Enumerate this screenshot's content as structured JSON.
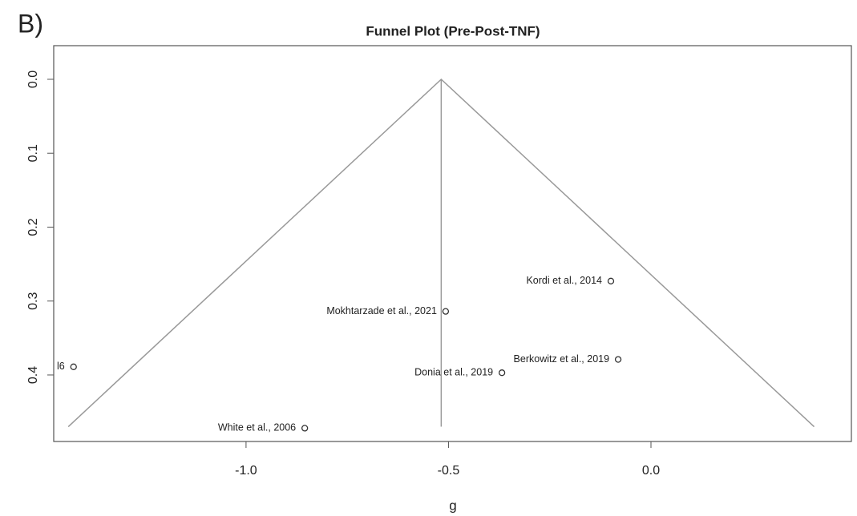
{
  "chart_data": {
    "type": "scatter",
    "panel_label": "B)",
    "title": "Funnel Plot (Pre-Post-TNF)",
    "x_label": "g",
    "xlim": [
      -1.475,
      0.495
    ],
    "ylim": [
      0.49,
      -0.0455
    ],
    "xticks": [
      {
        "value": -1.0,
        "label": "-1.0"
      },
      -0.5,
      {
        "value": 0,
        "label": "0.0"
      }
    ],
    "yticks": [
      {
        "value": 0,
        "label": "0.0"
      },
      0.1,
      0.2,
      0.3,
      0.4
    ],
    "funnel_lines": [
      {
        "x": [
          -1.439,
          -0.518,
          0.403
        ],
        "y": [
          0.47,
          0,
          0.47
        ]
      },
      {
        "x": [
          -0.518,
          -0.518
        ],
        "y": [
          0,
          0.47
        ]
      }
    ],
    "series": [
      {
        "x": [
          -0.099,
          -0.507,
          -0.081,
          -0.368,
          -0.855,
          -1.426
        ],
        "values": [
          0.273,
          0.314,
          0.379,
          0.397,
          0.472,
          0.389
        ],
        "labels": [
          "Kordi et al., 2014",
          "Mokhtarzade et al., 2021",
          "Berkowitz et al., 2019",
          "Donia et al., 2019",
          "White et al., 2006",
          "l6"
        ]
      }
    ]
  }
}
